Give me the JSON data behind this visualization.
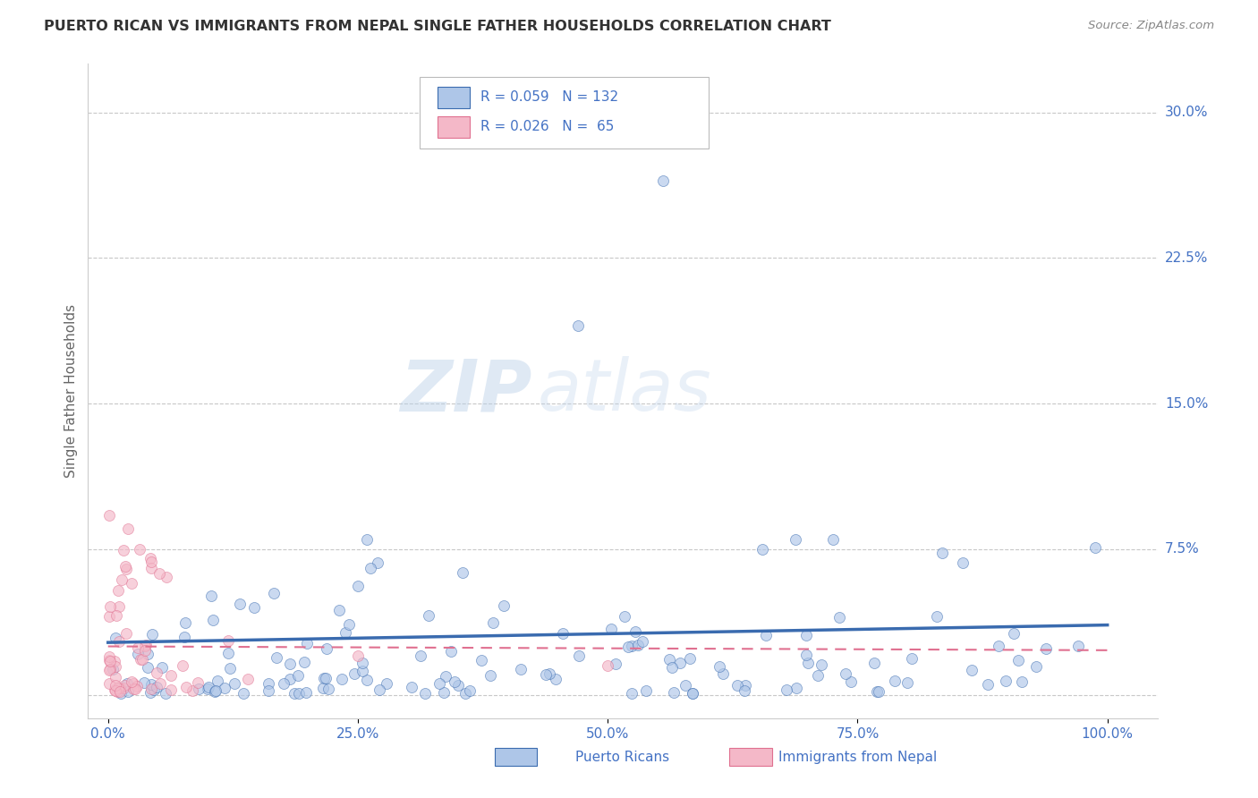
{
  "title": "PUERTO RICAN VS IMMIGRANTS FROM NEPAL SINGLE FATHER HOUSEHOLDS CORRELATION CHART",
  "source": "Source: ZipAtlas.com",
  "ylabel": "Single Father Households",
  "x_ticks": [
    0.0,
    0.25,
    0.5,
    0.75,
    1.0
  ],
  "x_tick_labels": [
    "0.0%",
    "25.0%",
    "50.0%",
    "75.0%",
    "100.0%"
  ],
  "y_ticks": [
    0.0,
    0.075,
    0.15,
    0.225,
    0.3
  ],
  "y_tick_labels": [
    "",
    "7.5%",
    "15.0%",
    "22.5%",
    "30.0%"
  ],
  "ylim": [
    -0.012,
    0.325
  ],
  "xlim": [
    -0.02,
    1.05
  ],
  "color_blue": "#aec6e8",
  "color_pink": "#f4b8c8",
  "line_color_blue": "#3a6baf",
  "line_color_pink": "#e07090",
  "title_color": "#333333",
  "axis_label_color": "#4472c4",
  "watermark_zip": "ZIP",
  "watermark_atlas": "atlas",
  "background_color": "#ffffff",
  "grid_color": "#c8c8c8",
  "scatter_alpha": 0.65,
  "scatter_size": 75,
  "blue_intercept": 0.027,
  "blue_slope": 0.009,
  "pink_intercept": 0.025,
  "pink_slope": -0.002
}
